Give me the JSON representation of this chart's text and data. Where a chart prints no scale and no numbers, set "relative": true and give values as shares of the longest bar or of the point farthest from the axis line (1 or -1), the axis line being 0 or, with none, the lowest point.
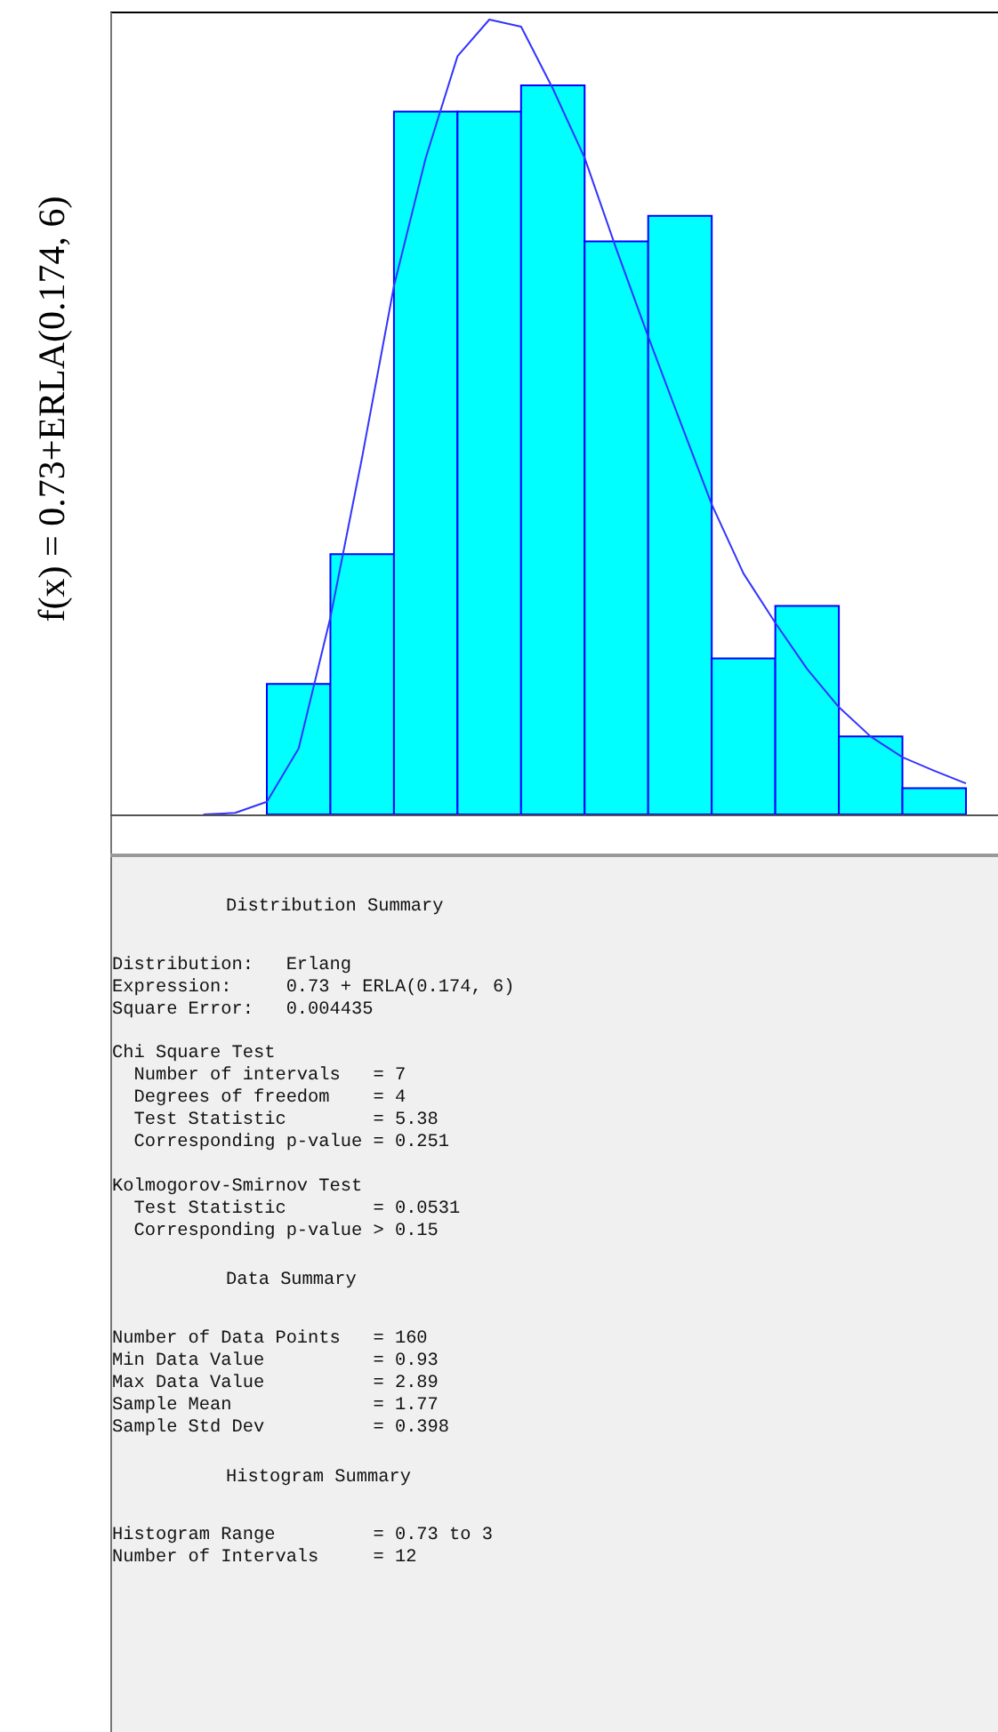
{
  "chart_data": [
    {
      "type": "bar",
      "relative": true,
      "ylabel": "f(x) = 0.73+ERLA(0.174, 6)",
      "categories": [
        null,
        null,
        null,
        null,
        null,
        null,
        null,
        null,
        null,
        null,
        null
      ],
      "values": [
        0.179,
        0.357,
        0.964,
        0.964,
        1,
        0.786,
        0.821,
        0.214,
        0.286,
        0.107,
        0.036
      ],
      "color": "#00ffff",
      "annotations": [
        "Distribution Summary",
        "Distribution:   Erlang\nExpression:     0.73 + ERLA(0.174, 6)\nSquare Error:   0.004435",
        "Chi Square Test\n  Number of intervals   = 7\n  Degrees of freedom    = 4\n  Test Statistic        = 5.38\n  Corresponding p-value = 0.251",
        "Kolmogorov-Smirnov Test\n  Test Statistic        = 0.0531\n  Corresponding p-value > 0.15",
        "Data Summary",
        "Number of Data Points   = 160\nMin Data Value          = 0.93\nMax Data Value          = 2.89\nSample Mean             = 1.77\nSample Std Dev          = 0.398",
        "Histogram Summary",
        "Histogram Range         = 0.73 to 3\nNumber of Intervals     = 12"
      ]
    },
    {
      "type": "line",
      "relative": true,
      "categories": [
        null,
        null,
        null,
        null,
        null,
        null,
        null,
        null,
        null,
        null,
        null,
        null,
        null,
        null,
        null,
        null,
        null,
        null,
        null,
        null,
        null,
        null,
        null,
        null,
        null
      ],
      "values": [
        0,
        0.002,
        0.016,
        0.083,
        0.248,
        0.45,
        0.665,
        0.826,
        0.954,
        1,
        0.991,
        0.913,
        0.826,
        0.711,
        0.601,
        0.495,
        0.39,
        0.303,
        0.241,
        0.183,
        0.135,
        0.098,
        0.072,
        0.055,
        0.039
      ],
      "color": "#3333ff"
    }
  ]
}
